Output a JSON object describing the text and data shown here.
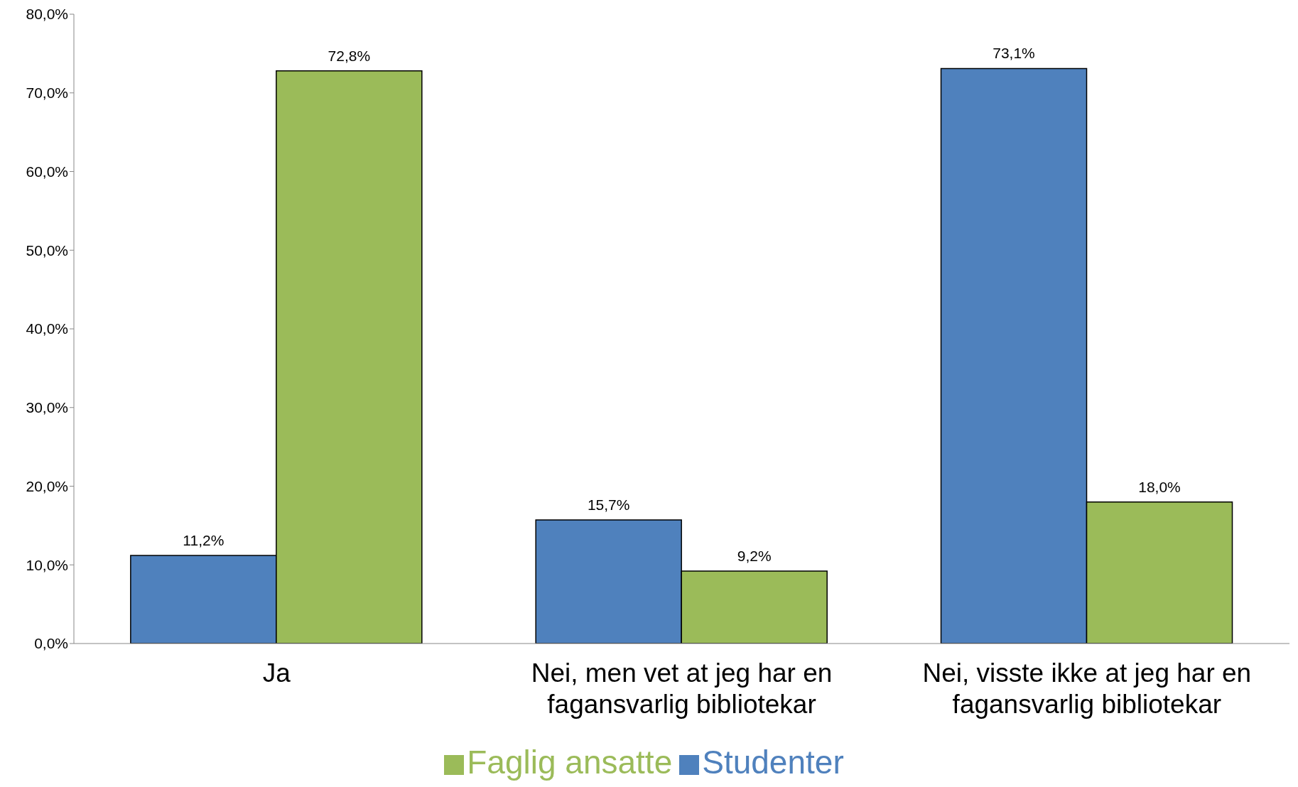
{
  "chart_data": {
    "type": "bar",
    "categories": [
      "Ja",
      "Nei, men vet at jeg har en fagansvarlig bibliotekar",
      "Nei, visste ikke at jeg har en fagansvarlig bibliotekar"
    ],
    "series": [
      {
        "name": "Studenter",
        "color": "#4f81bd",
        "values": [
          11.2,
          15.7,
          73.1
        ],
        "value_labels": [
          "11,2%",
          "15,7%",
          "73,1%"
        ]
      },
      {
        "name": "Faglig ansatte",
        "color": "#9bbb59",
        "values": [
          72.8,
          9.2,
          18.0
        ],
        "value_labels": [
          "72,8%",
          "9,2%",
          "18,0%"
        ]
      }
    ],
    "ylim": [
      0,
      80
    ],
    "yticks": [
      {
        "value": 0,
        "label": "0,0%"
      },
      {
        "value": 10,
        "label": "10,0%"
      },
      {
        "value": 20,
        "label": "20,0%"
      },
      {
        "value": 30,
        "label": "30,0%"
      },
      {
        "value": 40,
        "label": "40,0%"
      },
      {
        "value": 50,
        "label": "50,0%"
      },
      {
        "value": 60,
        "label": "60,0%"
      },
      {
        "value": 70,
        "label": "70,0%"
      },
      {
        "value": 80,
        "label": "80,0%"
      }
    ],
    "grid": false,
    "legend": "bottom"
  }
}
